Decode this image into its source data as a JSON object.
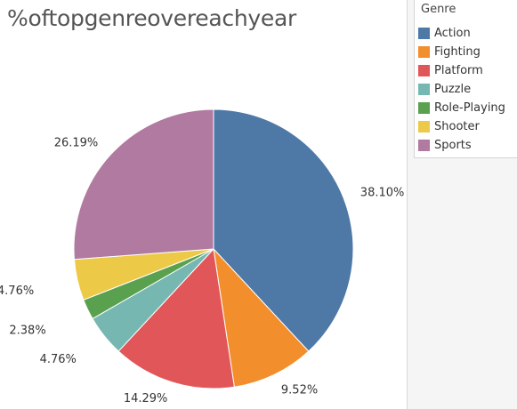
{
  "chart_data": {
    "type": "pie",
    "title": "%oftopgenreovereachyear",
    "legend_title": "Genre",
    "legend_position": "right",
    "categories": [
      "Action",
      "Fighting",
      "Platform",
      "Puzzle",
      "Role-Playing",
      "Shooter",
      "Sports"
    ],
    "values": [
      38.1,
      9.52,
      14.29,
      4.76,
      2.38,
      4.76,
      26.19
    ],
    "data_labels": [
      "38.10%",
      "9.52%",
      "14.29%",
      "4.76%",
      "2.38%",
      "4.76%",
      "26.19%"
    ],
    "colors": [
      "#4e79a7",
      "#f28e2b",
      "#e15759",
      "#76b7b2",
      "#59a14f",
      "#edc948",
      "#b07aa1"
    ]
  }
}
